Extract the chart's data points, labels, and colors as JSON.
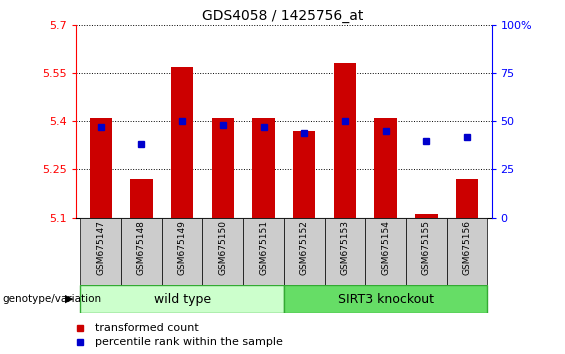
{
  "title": "GDS4058 / 1425756_at",
  "samples": [
    "GSM675147",
    "GSM675148",
    "GSM675149",
    "GSM675150",
    "GSM675151",
    "GSM675152",
    "GSM675153",
    "GSM675154",
    "GSM675155",
    "GSM675156"
  ],
  "transformed_counts": [
    5.41,
    5.22,
    5.57,
    5.41,
    5.41,
    5.37,
    5.58,
    5.41,
    5.11,
    5.22
  ],
  "percentile_ranks": [
    47,
    38,
    50,
    48,
    47,
    44,
    50,
    45,
    40,
    42
  ],
  "ylim_left": [
    5.1,
    5.7
  ],
  "ylim_right": [
    0,
    100
  ],
  "yticks_left": [
    5.1,
    5.25,
    5.4,
    5.55,
    5.7
  ],
  "ytick_labels_left": [
    "5.1",
    "5.25",
    "5.4",
    "5.55",
    "5.7"
  ],
  "yticks_right": [
    0,
    25,
    50,
    75,
    100
  ],
  "ytick_labels_right": [
    "0",
    "25",
    "50",
    "75",
    "100%"
  ],
  "bar_color": "#cc0000",
  "dot_color": "#0000cc",
  "bar_base": 5.1,
  "wild_type_label": "wild type",
  "knockout_label": "SIRT3 knockout",
  "genotype_label": "genotype/variation",
  "legend_bar_label": "transformed count",
  "legend_dot_label": "percentile rank within the sample",
  "wild_type_color": "#ccffcc",
  "knockout_color": "#66dd66",
  "label_box_color": "#cccccc",
  "bar_width": 0.55
}
